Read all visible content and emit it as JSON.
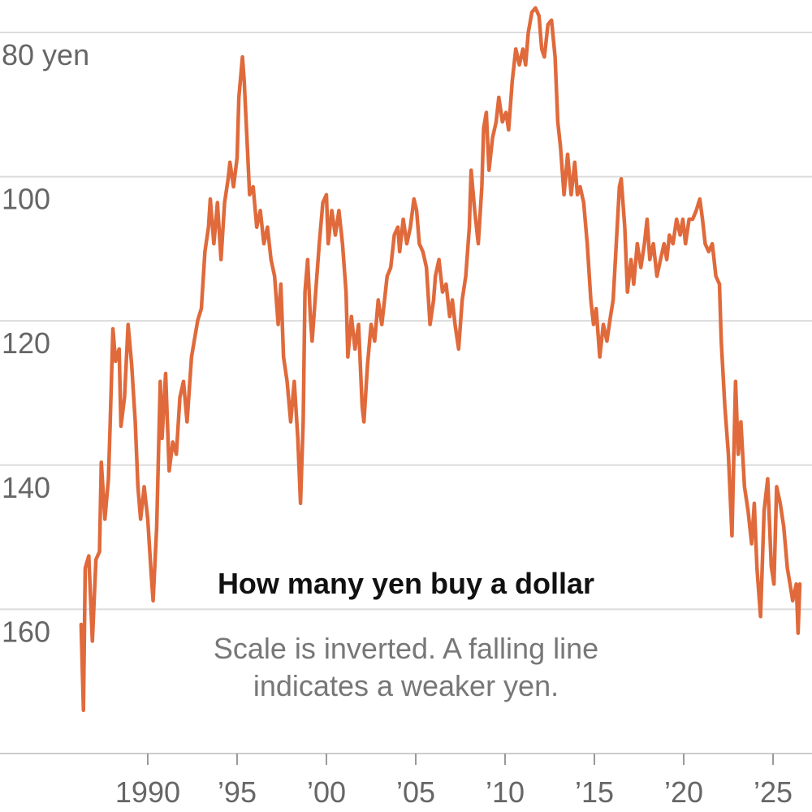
{
  "chart_data": {
    "type": "line",
    "title": "How many yen buy a dollar",
    "subtitle": "Scale is inverted. A falling line indicates a weaker yen.",
    "y_inverted": true,
    "grid": true,
    "color": "#e06a3b",
    "xlim": [
      1981.73,
      2027.18
    ],
    "xticks": [
      {
        "value": 1990,
        "label": "1990"
      },
      {
        "value": 1995,
        "label": "’95"
      },
      {
        "value": 2000,
        "label": "’00"
      },
      {
        "value": 2005,
        "label": "’05"
      },
      {
        "value": 2010,
        "label": "’10"
      },
      {
        "value": 2015,
        "label": "’15"
      },
      {
        "value": 2020,
        "label": "’20"
      },
      {
        "value": 2025,
        "label": "’25"
      }
    ],
    "ylim": [
      75.5,
      180
    ],
    "yticks": [
      {
        "value": 80,
        "label": "80 yen"
      },
      100,
      120,
      140,
      160
    ],
    "x": [
      1986.27,
      1986.4,
      1986.5,
      1986.7,
      1986.9,
      1987.1,
      1987.3,
      1987.4,
      1987.6,
      1987.8,
      1987.9,
      1988.05,
      1988.2,
      1988.4,
      1988.5,
      1988.7,
      1988.9,
      1989.1,
      1989.3,
      1989.45,
      1989.6,
      1989.8,
      1990,
      1990.2,
      1990.3,
      1990.5,
      1990.7,
      1990.8,
      1991,
      1991.2,
      1991.4,
      1991.6,
      1991.8,
      1992,
      1992.2,
      1992.45,
      1992.6,
      1992.8,
      1993,
      1993.2,
      1993.4,
      1993.5,
      1993.7,
      1993.9,
      1994.1,
      1994.3,
      1994.5,
      1994.6,
      1994.8,
      1995,
      1995.1,
      1995.3,
      1995.4,
      1995.55,
      1995.7,
      1995.9,
      1996.1,
      1996.3,
      1996.5,
      1996.7,
      1996.9,
      1997.1,
      1997.3,
      1997.45,
      1997.6,
      1997.8,
      1998,
      1998.2,
      1998.4,
      1998.55,
      1998.7,
      1998.8,
      1998.95,
      1999.1,
      1999.2,
      1999.4,
      1999.6,
      1999.8,
      2000,
      2000.1,
      2000.3,
      2000.5,
      2000.7,
      2000.9,
      2001.1,
      2001.2,
      2001.4,
      2001.6,
      2001.8,
      2002,
      2002.1,
      2002.3,
      2002.5,
      2002.7,
      2002.9,
      2003.1,
      2003.2,
      2003.4,
      2003.6,
      2003.8,
      2004,
      2004.1,
      2004.3,
      2004.5,
      2004.7,
      2004.9,
      2005.05,
      2005.2,
      2005.4,
      2005.6,
      2005.8,
      2006,
      2006.1,
      2006.3,
      2006.5,
      2006.7,
      2006.9,
      2007.05,
      2007.2,
      2007.4,
      2007.6,
      2007.8,
      2008,
      2008.1,
      2008.3,
      2008.5,
      2008.7,
      2008.8,
      2008.95,
      2009.1,
      2009.3,
      2009.5,
      2009.65,
      2009.85,
      2010.05,
      2010.2,
      2010.4,
      2010.6,
      2010.8,
      2011,
      2011.15,
      2011.3,
      2011.5,
      2011.7,
      2011.9,
      2012.05,
      2012.2,
      2012.4,
      2012.6,
      2012.8,
      2012.95,
      2013.1,
      2013.3,
      2013.5,
      2013.7,
      2013.9,
      2014.05,
      2014.2,
      2014.4,
      2014.6,
      2014.8,
      2014.95,
      2015.1,
      2015.3,
      2015.5,
      2015.7,
      2015.9,
      2016.05,
      2016.2,
      2016.4,
      2016.5,
      2016.7,
      2016.85,
      2017.05,
      2017.2,
      2017.4,
      2017.6,
      2017.8,
      2017.95,
      2018.1,
      2018.3,
      2018.5,
      2018.7,
      2018.9,
      2019.05,
      2019.2,
      2019.4,
      2019.6,
      2019.8,
      2019.95,
      2020.1,
      2020.3,
      2020.5,
      2020.7,
      2020.9,
      2021.05,
      2021.2,
      2021.4,
      2021.6,
      2021.8,
      2022,
      2022.1,
      2022.3,
      2022.5,
      2022.7,
      2022.9,
      2023.05,
      2023.2,
      2023.4,
      2023.6,
      2023.8,
      2023.95,
      2024.1,
      2024.3,
      2024.5,
      2024.7,
      2024.9,
      2025.05,
      2025.2,
      2025.4,
      2025.6,
      2025.8,
      2025.95,
      2026.1,
      2026.3,
      2026.4,
      2026.5
    ],
    "values": [
      162.1,
      174,
      154.3,
      152.6,
      164.4,
      153.1,
      152,
      139.6,
      147.5,
      141.9,
      134,
      121.1,
      125.6,
      123.9,
      134.6,
      130.6,
      120.5,
      126.1,
      134,
      143,
      147.5,
      143,
      147.5,
      155.4,
      158.8,
      148.6,
      128.4,
      136.3,
      127.3,
      140.8,
      136.8,
      138.5,
      130.6,
      128.4,
      134,
      125,
      122.8,
      119.9,
      118.3,
      110.4,
      107,
      103.1,
      109.3,
      103.6,
      111.5,
      103.6,
      100.3,
      98,
      101.4,
      97.4,
      89,
      83.4,
      86.8,
      94.6,
      102.5,
      101.4,
      107,
      104.7,
      109.3,
      107,
      111.5,
      113.8,
      120.5,
      114.9,
      125,
      128.4,
      134,
      128.4,
      136.3,
      145.3,
      134,
      116,
      111.5,
      119.4,
      122.8,
      116,
      109.3,
      103.6,
      102.5,
      109.3,
      104.7,
      108.1,
      104.7,
      109.3,
      116,
      125,
      119.4,
      123.9,
      120.5,
      131.8,
      134,
      126.1,
      120.5,
      122.8,
      117.1,
      120.5,
      118.3,
      113.8,
      112.6,
      108.1,
      107,
      110.4,
      105.9,
      109.3,
      107,
      103.1,
      104.7,
      109.3,
      110.4,
      112.6,
      120.5,
      117.1,
      113.8,
      111.5,
      116,
      114.9,
      119.4,
      117.1,
      120.5,
      123.9,
      117.1,
      113.8,
      107,
      99.1,
      104.7,
      109.3,
      101.4,
      93.3,
      91.1,
      99.1,
      94.6,
      92.4,
      89,
      92.4,
      91.1,
      93.5,
      86.8,
      82.3,
      84.5,
      82.3,
      84.5,
      80,
      77.2,
      76.6,
      77.7,
      82.3,
      83.4,
      78.9,
      78.3,
      83.4,
      92.4,
      95.8,
      102.5,
      96.9,
      102.5,
      98,
      102.5,
      101.4,
      103.6,
      109.3,
      117.1,
      120.5,
      118.3,
      125,
      120.5,
      122.8,
      119.4,
      117.1,
      110.4,
      101.4,
      100.3,
      107,
      116,
      111.5,
      114.9,
      109.3,
      112.6,
      109.3,
      105.9,
      111.5,
      109.3,
      113.8,
      111.5,
      109.3,
      111.5,
      108.1,
      109.3,
      105.9,
      108.1,
      105.9,
      109.3,
      105.9,
      105.9,
      104.7,
      103.1,
      105.9,
      109.3,
      110.4,
      109.3,
      113.8,
      114.9,
      122.8,
      131.8,
      138.5,
      149.8,
      128.4,
      138.5,
      134,
      143,
      146.3,
      150.9,
      145.3,
      154.3,
      161,
      146.3,
      141.9,
      154,
      156.5,
      143,
      145.3,
      148.6,
      154.3,
      156.5,
      158.8,
      156.5,
      163.3,
      156.5
    ]
  }
}
